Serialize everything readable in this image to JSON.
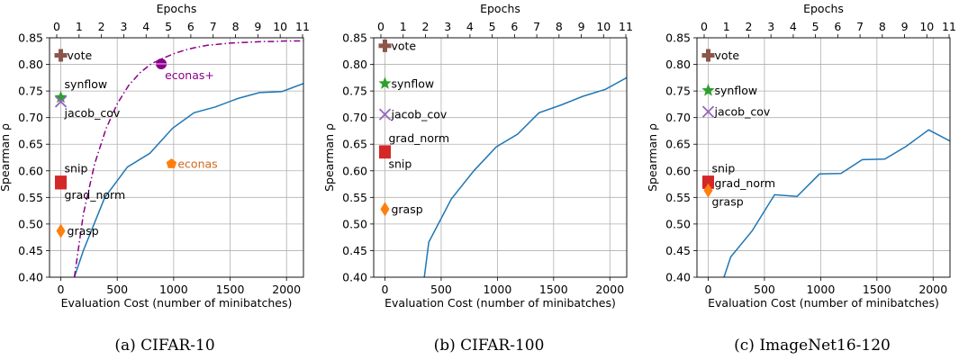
{
  "chart_data": [
    {
      "type": "line",
      "caption": "(a) CIFAR-10",
      "xlabel": "Evaluation Cost (number of minibatches)",
      "ylabel": "Spearman ρ",
      "top_xlabel": "Epochs",
      "xlim": [
        -100,
        2150
      ],
      "ylim": [
        0.4,
        0.85
      ],
      "xticks": [
        0,
        500,
        1000,
        1500,
        2000
      ],
      "yticks": [
        0.4,
        0.45,
        0.5,
        0.55,
        0.6,
        0.65,
        0.7,
        0.75,
        0.8,
        0.85
      ],
      "top_xticks": [
        0,
        1,
        2,
        3,
        4,
        5,
        6,
        7,
        8,
        9,
        10,
        11
      ],
      "grid": true,
      "series": [
        {
          "color": "#1f77b4",
          "style": "solid",
          "x": [
            120,
            200,
            390,
            590,
            790,
            990,
            1180,
            1370,
            1570,
            1760,
            1960,
            2150
          ],
          "y": [
            0.4,
            0.45,
            0.55,
            0.607,
            0.633,
            0.68,
            0.709,
            0.72,
            0.736,
            0.747,
            0.749,
            0.764
          ]
        },
        {
          "color": "#8b008b",
          "style": "dashdot",
          "x": [
            120,
            200,
            300,
            400,
            500,
            600,
            700,
            800,
            890,
            1000,
            1100,
            1200,
            1300,
            1400,
            1500,
            1600,
            1700,
            1800,
            1900,
            2000,
            2150
          ],
          "y": [
            0.4,
            0.519,
            0.613,
            0.679,
            0.726,
            0.76,
            0.784,
            0.801,
            0.81,
            0.82,
            0.827,
            0.832,
            0.836,
            0.838,
            0.84,
            0.841,
            0.842,
            0.843,
            0.843,
            0.844,
            0.844
          ]
        }
      ],
      "points": [
        {
          "label": "vote",
          "x": 0,
          "y": 0.817,
          "marker": "plus",
          "color": "#8c564b",
          "text_color": "#000000",
          "anchor": "right"
        },
        {
          "label": "synflow",
          "x": 0,
          "y": 0.738,
          "marker": "star",
          "color": "#2ca02c",
          "text_color": "#000000",
          "anchor": "above"
        },
        {
          "label": "jacob_cov",
          "x": 0,
          "y": 0.73,
          "marker": "x",
          "color": "#9467bd",
          "text_color": "#000000",
          "anchor": "below"
        },
        {
          "label": "snip",
          "x": 0,
          "y": 0.58,
          "marker": "square",
          "color": "#d62728",
          "text_color": "#000000",
          "anchor": "above"
        },
        {
          "label": "grad_norm",
          "x": 0,
          "y": 0.576,
          "marker": "square",
          "color": "#d62728",
          "text_color": "#000000",
          "anchor": "below"
        },
        {
          "label": "grasp",
          "x": 0,
          "y": 0.487,
          "marker": "diamond",
          "color": "#ff7f0e",
          "text_color": "#000000",
          "anchor": "right"
        },
        {
          "label": "econas+",
          "x": 890,
          "y": 0.801,
          "marker": "circle",
          "color": "#8b008b",
          "text_color": "#8b008b",
          "anchor": "below"
        },
        {
          "label": "econas",
          "x": 980,
          "y": 0.613,
          "marker": "pentagon",
          "color": "#ff7f0e",
          "text_color": "#d2691e",
          "anchor": "right"
        }
      ]
    },
    {
      "type": "line",
      "caption": "(b) CIFAR-100",
      "xlabel": "Evaluation Cost (number of minibatches)",
      "ylabel": "Spearman ρ",
      "top_xlabel": "Epochs",
      "xlim": [
        -100,
        2150
      ],
      "ylim": [
        0.4,
        0.85
      ],
      "xticks": [
        0,
        500,
        1000,
        1500,
        2000
      ],
      "yticks": [
        0.4,
        0.45,
        0.5,
        0.55,
        0.6,
        0.65,
        0.7,
        0.75,
        0.8,
        0.85
      ],
      "top_xticks": [
        0,
        1,
        2,
        3,
        4,
        5,
        6,
        7,
        8,
        9,
        10,
        11
      ],
      "grid": true,
      "series": [
        {
          "color": "#1f77b4",
          "style": "solid",
          "x": [
            350,
            390,
            590,
            790,
            990,
            1180,
            1370,
            1570,
            1760,
            1960,
            2150
          ],
          "y": [
            0.4,
            0.466,
            0.547,
            0.6,
            0.645,
            0.669,
            0.709,
            0.724,
            0.74,
            0.753,
            0.775
          ]
        }
      ],
      "points": [
        {
          "label": "vote",
          "x": 0,
          "y": 0.835,
          "marker": "plus",
          "color": "#8c564b",
          "text_color": "#000000",
          "anchor": "right"
        },
        {
          "label": "synflow",
          "x": 0,
          "y": 0.764,
          "marker": "star",
          "color": "#2ca02c",
          "text_color": "#000000",
          "anchor": "right"
        },
        {
          "label": "jacob_cov",
          "x": 0,
          "y": 0.706,
          "marker": "x",
          "color": "#9467bd",
          "text_color": "#000000",
          "anchor": "right"
        },
        {
          "label": "grad_norm",
          "x": 0,
          "y": 0.637,
          "marker": "square",
          "color": "#d62728",
          "text_color": "#000000",
          "anchor": "above"
        },
        {
          "label": "snip",
          "x": 0,
          "y": 0.634,
          "marker": "square",
          "color": "#d62728",
          "text_color": "#000000",
          "anchor": "below"
        },
        {
          "label": "grasp",
          "x": 0,
          "y": 0.528,
          "marker": "diamond",
          "color": "#ff7f0e",
          "text_color": "#000000",
          "anchor": "right"
        }
      ]
    },
    {
      "type": "line",
      "caption": "(c) ImageNet16-120",
      "xlabel": "Evaluation Cost (number of minibatches)",
      "ylabel": "Spearman ρ",
      "top_xlabel": "Epochs",
      "xlim": [
        -100,
        2150
      ],
      "ylim": [
        0.4,
        0.85
      ],
      "xticks": [
        0,
        500,
        1000,
        1500,
        2000
      ],
      "yticks": [
        0.4,
        0.45,
        0.5,
        0.55,
        0.6,
        0.65,
        0.7,
        0.75,
        0.8,
        0.85
      ],
      "top_xticks": [
        0,
        1,
        2,
        3,
        4,
        5,
        6,
        7,
        8,
        9,
        10,
        11
      ],
      "grid": true,
      "series": [
        {
          "color": "#1f77b4",
          "style": "solid",
          "x": [
            140,
            200,
            390,
            590,
            790,
            990,
            1180,
            1370,
            1570,
            1760,
            1960,
            2150
          ],
          "y": [
            0.4,
            0.438,
            0.487,
            0.555,
            0.552,
            0.594,
            0.595,
            0.621,
            0.622,
            0.646,
            0.677,
            0.656
          ]
        }
      ],
      "points": [
        {
          "label": "vote",
          "x": 0,
          "y": 0.817,
          "marker": "plus",
          "color": "#8c564b",
          "text_color": "#000000",
          "anchor": "right"
        },
        {
          "label": "synflow",
          "x": 0,
          "y": 0.751,
          "marker": "star",
          "color": "#2ca02c",
          "text_color": "#000000",
          "anchor": "right"
        },
        {
          "label": "jacob_cov",
          "x": 0,
          "y": 0.711,
          "marker": "x",
          "color": "#9467bd",
          "text_color": "#000000",
          "anchor": "right"
        },
        {
          "label": "snip",
          "x": 0,
          "y": 0.58,
          "marker": "square",
          "color": "#d62728",
          "text_color": "#000000",
          "anchor": "above"
        },
        {
          "label": "grad_norm",
          "x": 0,
          "y": 0.577,
          "marker": "square",
          "color": "#d62728",
          "text_color": "#000000",
          "anchor": "right"
        },
        {
          "label": "grasp",
          "x": 0,
          "y": 0.563,
          "marker": "diamond",
          "color": "#ff7f0e",
          "text_color": "#000000",
          "anchor": "below"
        }
      ]
    }
  ]
}
